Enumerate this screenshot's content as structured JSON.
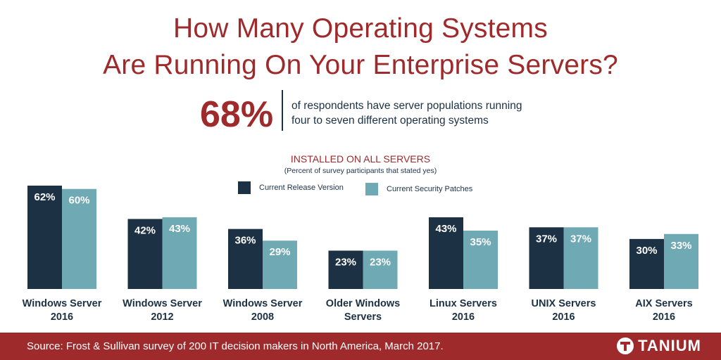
{
  "header": {
    "title_line1": "How Many Operating Systems",
    "title_line2": "Are Running On Your Enterprise Servers?"
  },
  "stat": {
    "value": "68%",
    "text_line1": "of respondents have server populations running",
    "text_line2": "four to seven different operating systems"
  },
  "footer": {
    "source": "Source: Frost & Sullivan survey of 200 IT decision makers in North America, March 2017.",
    "logo_text": "TANIUM"
  },
  "colors": {
    "accent": "#9e2a2b",
    "series_current_release": "#1c3144",
    "series_security_patches": "#6fa9b3"
  },
  "chart_data": {
    "type": "bar",
    "title": "INSTALLED ON ALL SERVERS",
    "subtitle": "(Percent of survey participants that stated yes)",
    "categories": [
      [
        "Windows Server",
        "2016"
      ],
      [
        "Windows Server",
        "2012"
      ],
      [
        "Windows Server",
        "2008"
      ],
      [
        "Older Windows",
        "Servers"
      ],
      [
        "Linux Servers",
        "2016"
      ],
      [
        "UNIX Servers",
        "2016"
      ],
      [
        "AIX Servers",
        "2016"
      ]
    ],
    "series": [
      {
        "name": "Current Release Version",
        "color": "#1c3144",
        "values": [
          62,
          42,
          36,
          23,
          43,
          37,
          30
        ]
      },
      {
        "name": "Current Security Patches",
        "color": "#6fa9b3",
        "values": [
          60,
          43,
          29,
          23,
          35,
          37,
          33
        ]
      }
    ],
    "value_suffix": "%",
    "ylim": [
      0,
      62
    ],
    "legend": "top-center",
    "grid": false
  }
}
